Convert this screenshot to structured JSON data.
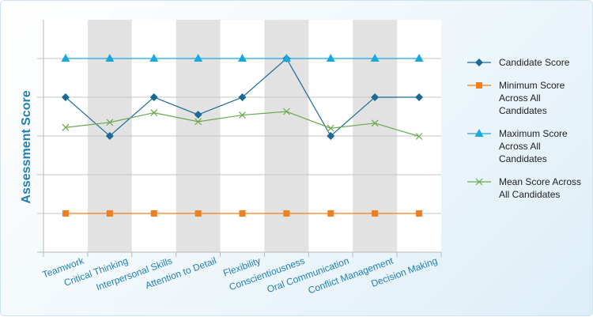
{
  "chart_data": {
    "type": "line",
    "title": "",
    "xlabel": "",
    "ylabel": "Assessment Score",
    "ylim": [
      0,
      6
    ],
    "grid": "horizontal",
    "legend_position": "right",
    "categories": [
      "Teamwork",
      "Critical Thinking",
      "Interpersonal Skills",
      "Attention to Detail",
      "Flexibility",
      "Conscientiousness",
      "Oral Communication",
      "Conflict Management",
      "Decision Making"
    ],
    "series": [
      {
        "name": "Candidate Score",
        "color": "#1a6a94",
        "marker": "diamond",
        "values": [
          4,
          3,
          4,
          3.55,
          4,
          5,
          3,
          4,
          4
        ]
      },
      {
        "name": "Minimum Score Across All Candidates",
        "color": "#f07f1e",
        "marker": "square",
        "values": [
          1,
          1,
          1,
          1,
          1,
          1,
          1,
          1,
          1
        ]
      },
      {
        "name": "Maximum Score Across All Candidates",
        "color": "#19a8de",
        "marker": "triangle",
        "values": [
          5,
          5,
          5,
          5,
          5,
          5,
          5,
          5,
          5
        ]
      },
      {
        "name": "Mean Score Across All Candidates",
        "color": "#6aa84f",
        "marker": "x",
        "values": [
          3.22,
          3.35,
          3.6,
          3.37,
          3.54,
          3.63,
          3.2,
          3.33,
          2.99
        ]
      }
    ]
  }
}
